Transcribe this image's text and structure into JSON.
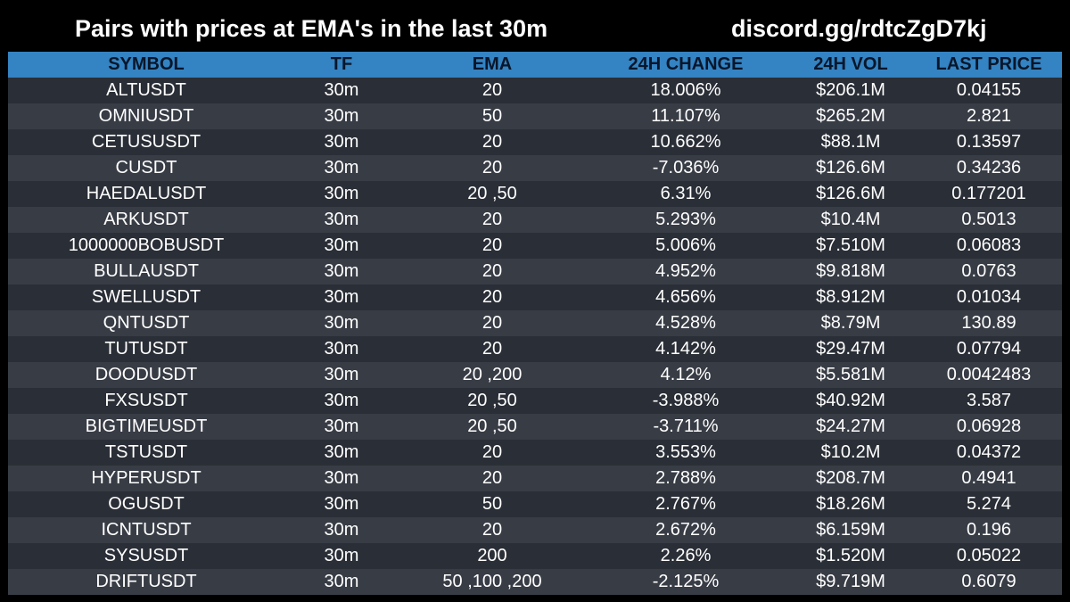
{
  "header": {
    "title": "Pairs with prices at EMA's in the last 30m",
    "link": "discord.gg/rdtcZgD7kj"
  },
  "table": {
    "columns": [
      "SYMBOL",
      "TF",
      "EMA",
      "24H CHANGE",
      "24H VOL",
      "LAST PRICE"
    ],
    "rows": [
      [
        "ALTUSDT",
        "30m",
        "20",
        "18.006%",
        "$206.1M",
        "0.04155"
      ],
      [
        "OMNIUSDT",
        "30m",
        "50",
        "11.107%",
        "$265.2M",
        "2.821"
      ],
      [
        "CETUSUSDT",
        "30m",
        "20",
        "10.662%",
        "$88.1M",
        "0.13597"
      ],
      [
        "CUSDT",
        "30m",
        "20",
        "-7.036%",
        "$126.6M",
        "0.34236"
      ],
      [
        "HAEDALUSDT",
        "30m",
        "20 ,50",
        "6.31%",
        "$126.6M",
        "0.177201"
      ],
      [
        "ARKUSDT",
        "30m",
        "20",
        "5.293%",
        "$10.4M",
        "0.5013"
      ],
      [
        "1000000BOBUSDT",
        "30m",
        "20",
        "5.006%",
        "$7.510M",
        "0.06083"
      ],
      [
        "BULLAUSDT",
        "30m",
        "20",
        "4.952%",
        "$9.818M",
        "0.0763"
      ],
      [
        "SWELLUSDT",
        "30m",
        "20",
        "4.656%",
        "$8.912M",
        "0.01034"
      ],
      [
        "QNTUSDT",
        "30m",
        "20",
        "4.528%",
        "$8.79M",
        "130.89"
      ],
      [
        "TUTUSDT",
        "30m",
        "20",
        "4.142%",
        "$29.47M",
        "0.07794"
      ],
      [
        "DOODUSDT",
        "30m",
        "20 ,200",
        "4.12%",
        "$5.581M",
        "0.0042483"
      ],
      [
        "FXSUSDT",
        "30m",
        "20 ,50",
        "-3.988%",
        "$40.92M",
        "3.587"
      ],
      [
        "BIGTIMEUSDT",
        "30m",
        "20 ,50",
        "-3.711%",
        "$24.27M",
        "0.06928"
      ],
      [
        "TSTUSDT",
        "30m",
        "20",
        "3.553%",
        "$10.2M",
        "0.04372"
      ],
      [
        "HYPERUSDT",
        "30m",
        "20",
        "2.788%",
        "$208.7M",
        "0.4941"
      ],
      [
        "OGUSDT",
        "30m",
        "50",
        "2.767%",
        "$18.26M",
        "5.274"
      ],
      [
        "ICNTUSDT",
        "30m",
        "20",
        "2.672%",
        "$6.159M",
        "0.196"
      ],
      [
        "SYSUSDT",
        "30m",
        "200",
        "2.26%",
        "$1.520M",
        "0.05022"
      ],
      [
        "DRIFTUSDT",
        "30m",
        "50 ,100 ,200",
        "-2.125%",
        "$9.719M",
        "0.6079"
      ]
    ]
  },
  "colors": {
    "background": "#000000",
    "header_row": "#3483c2",
    "row_dark": "#2a2e36",
    "row_light": "#383c45",
    "text": "#ffffff",
    "header_text": "#07162a"
  }
}
